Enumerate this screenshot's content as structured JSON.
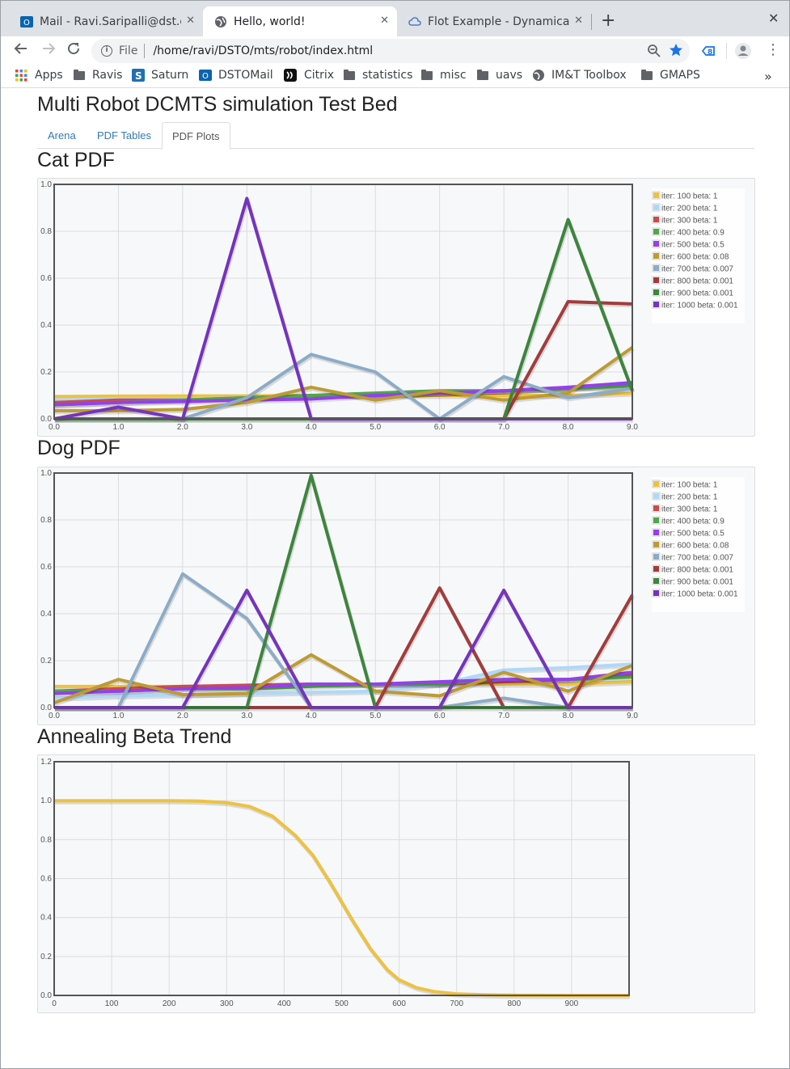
{
  "browser": {
    "tabs": [
      {
        "title": "Mail - Ravi.Saripalli@dst.de",
        "icon": "outlook-icon"
      },
      {
        "title": "Hello, world!",
        "icon": "globe-icon"
      },
      {
        "title": "Flot Example - Dynamically",
        "icon": "cloud-icon"
      }
    ],
    "new_tab": "+",
    "close": "✕",
    "address": {
      "scheme": "File",
      "path": "/home/ravi/DSTO/mts/robot/index.html"
    },
    "bookmarks": [
      {
        "label": "Apps",
        "icon": "apps-grid-icon"
      },
      {
        "label": "Ravis",
        "icon": "folder-icon"
      },
      {
        "label": "Saturn",
        "icon": "saturn-icon"
      },
      {
        "label": "DSTOMail",
        "icon": "outlook-icon"
      },
      {
        "label": "Citrix",
        "icon": "citrix-icon"
      },
      {
        "label": "statistics",
        "icon": "folder-icon"
      },
      {
        "label": "misc",
        "icon": "folder-icon"
      },
      {
        "label": "uavs",
        "icon": "folder-icon"
      },
      {
        "label": "IM&T Toolbox",
        "icon": "globe-icon"
      },
      {
        "label": "GMAPS",
        "icon": "folder-icon"
      }
    ],
    "more": "»"
  },
  "page": {
    "title": "Multi Robot DCMTS simulation Test Bed",
    "tabs": [
      "Arena",
      "PDF Tables",
      "PDF Plots"
    ],
    "active_tab": "PDF Plots"
  },
  "chart_data": [
    {
      "type": "line",
      "title": "Cat PDF",
      "x": [
        0,
        1,
        2,
        3,
        4,
        5,
        6,
        7,
        8,
        9
      ],
      "xlim": [
        0,
        9
      ],
      "ylim": [
        0,
        1
      ],
      "xticks": [
        "0.0",
        "1.0",
        "2.0",
        "3.0",
        "4.0",
        "5.0",
        "6.0",
        "7.0",
        "8.0",
        "9.0"
      ],
      "yticks": [
        "0.0",
        "0.2",
        "0.4",
        "0.6",
        "0.8",
        "1.0"
      ],
      "legend_position": "top-right",
      "grid": true,
      "series": [
        {
          "name": "iter: 100 beta: 1",
          "color": "#edc240",
          "values": [
            0.095,
            0.097,
            0.098,
            0.098,
            0.1,
            0.1,
            0.1,
            0.1,
            0.1,
            0.11
          ]
        },
        {
          "name": "iter: 200 beta: 1",
          "color": "#afd8f8",
          "values": [
            0.08,
            0.085,
            0.085,
            0.09,
            0.1,
            0.1,
            0.11,
            0.12,
            0.13,
            0.14
          ]
        },
        {
          "name": "iter: 300 beta: 1",
          "color": "#cb4b4b",
          "values": [
            0.07,
            0.08,
            0.08,
            0.09,
            0.1,
            0.1,
            0.11,
            0.12,
            0.13,
            0.15
          ]
        },
        {
          "name": "iter: 400 beta: 0.9",
          "color": "#4da74d",
          "values": [
            0.06,
            0.07,
            0.08,
            0.09,
            0.1,
            0.11,
            0.12,
            0.12,
            0.13,
            0.14
          ]
        },
        {
          "name": "iter: 500 beta: 0.5",
          "color": "#9440ed",
          "values": [
            0.06,
            0.07,
            0.075,
            0.08,
            0.085,
            0.1,
            0.11,
            0.12,
            0.135,
            0.155
          ]
        },
        {
          "name": "iter: 600 beta: 0.08",
          "color": "#bd9b33",
          "values": [
            0.035,
            0.035,
            0.04,
            0.07,
            0.135,
            0.08,
            0.12,
            0.08,
            0.11,
            0.305
          ]
        },
        {
          "name": "iter: 700 beta: 0.007",
          "color": "#8cacc6",
          "values": [
            0.0,
            0.0,
            0.0,
            0.09,
            0.275,
            0.2,
            0.0,
            0.18,
            0.09,
            0.13
          ]
        },
        {
          "name": "iter: 800 beta: 0.001",
          "color": "#a23c3c",
          "values": [
            0.0,
            0.0,
            0.0,
            0.0,
            0.0,
            0.0,
            0.0,
            0.0,
            0.5,
            0.49
          ]
        },
        {
          "name": "iter: 900 beta: 0.001",
          "color": "#3d853d",
          "values": [
            0.0,
            0.0,
            0.0,
            0.0,
            0.0,
            0.0,
            0.0,
            0.0,
            0.85,
            0.12
          ]
        },
        {
          "name": "iter: 1000 beta: 0.001",
          "color": "#7633bd",
          "values": [
            0.0,
            0.05,
            0.0,
            0.94,
            0.0,
            0.0,
            0.0,
            0.0,
            0.0,
            0.0
          ]
        }
      ]
    },
    {
      "type": "line",
      "title": "Dog PDF",
      "x": [
        0,
        1,
        2,
        3,
        4,
        5,
        6,
        7,
        8,
        9
      ],
      "xlim": [
        0,
        9
      ],
      "ylim": [
        0,
        1
      ],
      "xticks": [
        "0.0",
        "1.0",
        "2.0",
        "3.0",
        "4.0",
        "5.0",
        "6.0",
        "7.0",
        "8.0",
        "9.0"
      ],
      "yticks": [
        "0.0",
        "0.2",
        "0.4",
        "0.6",
        "0.8",
        "1.0"
      ],
      "legend_position": "top-right",
      "grid": true,
      "series": [
        {
          "name": "iter: 100 beta: 1",
          "color": "#edc240",
          "values": [
            0.09,
            0.09,
            0.09,
            0.09,
            0.1,
            0.1,
            0.1,
            0.1,
            0.1,
            0.11
          ]
        },
        {
          "name": "iter: 200 beta: 1",
          "color": "#afd8f8",
          "values": [
            0.04,
            0.05,
            0.055,
            0.06,
            0.065,
            0.07,
            0.1,
            0.16,
            0.17,
            0.185
          ]
        },
        {
          "name": "iter: 300 beta: 1",
          "color": "#cb4b4b",
          "values": [
            0.07,
            0.08,
            0.09,
            0.095,
            0.1,
            0.1,
            0.1,
            0.11,
            0.12,
            0.14
          ]
        },
        {
          "name": "iter: 400 beta: 0.9",
          "color": "#4da74d",
          "values": [
            0.07,
            0.07,
            0.08,
            0.08,
            0.09,
            0.1,
            0.1,
            0.12,
            0.12,
            0.13
          ]
        },
        {
          "name": "iter: 500 beta: 0.5",
          "color": "#9440ed",
          "values": [
            0.06,
            0.07,
            0.08,
            0.085,
            0.1,
            0.1,
            0.11,
            0.12,
            0.12,
            0.15
          ]
        },
        {
          "name": "iter: 600 beta: 0.08",
          "color": "#bd9b33",
          "values": [
            0.02,
            0.12,
            0.055,
            0.06,
            0.225,
            0.07,
            0.05,
            0.15,
            0.07,
            0.18
          ]
        },
        {
          "name": "iter: 700 beta: 0.007",
          "color": "#8cacc6",
          "values": [
            0.0,
            0.0,
            0.57,
            0.38,
            0.0,
            0.0,
            0.0,
            0.04,
            0.0,
            0.0
          ]
        },
        {
          "name": "iter: 800 beta: 0.001",
          "color": "#a23c3c",
          "values": [
            0.0,
            0.0,
            0.0,
            0.0,
            0.0,
            0.0,
            0.51,
            0.0,
            0.0,
            0.48
          ]
        },
        {
          "name": "iter: 900 beta: 0.001",
          "color": "#3d853d",
          "values": [
            0.0,
            0.0,
            0.0,
            0.0,
            0.99,
            0.0,
            0.0,
            0.0,
            0.0,
            0.0
          ]
        },
        {
          "name": "iter: 1000 beta: 0.001",
          "color": "#7633bd",
          "values": [
            0.0,
            0.0,
            0.0,
            0.5,
            0.0,
            0.0,
            0.0,
            0.5,
            0.0,
            0.0
          ]
        }
      ]
    },
    {
      "type": "line",
      "title": "Annealing Beta Trend",
      "xlim": [
        0,
        1000
      ],
      "ylim": [
        0,
        1.2
      ],
      "xticks": [
        "0",
        "100",
        "200",
        "300",
        "400",
        "500",
        "600",
        "700",
        "800",
        "900"
      ],
      "yticks": [
        "0.0",
        "0.2",
        "0.4",
        "0.6",
        "0.8",
        "1.0",
        "1.2"
      ],
      "grid": true,
      "series": [
        {
          "color": "#edc240",
          "x": [
            0,
            100,
            200,
            250,
            300,
            340,
            380,
            420,
            450,
            480,
            500,
            520,
            550,
            580,
            600,
            630,
            660,
            700,
            750,
            800,
            900,
            1000
          ],
          "values": [
            1.0,
            1.0,
            1.0,
            0.998,
            0.99,
            0.97,
            0.92,
            0.82,
            0.72,
            0.58,
            0.48,
            0.38,
            0.24,
            0.13,
            0.08,
            0.04,
            0.02,
            0.008,
            0.003,
            0.001,
            0.0,
            0.0
          ]
        }
      ]
    }
  ]
}
